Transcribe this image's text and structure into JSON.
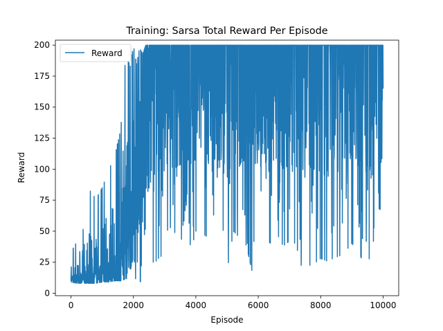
{
  "chart_data": {
    "type": "line",
    "title": "Training: Sarsa Total Reward Per Episode",
    "xlabel": "Episode",
    "ylabel": "Reward",
    "xlim": [
      -500,
      10500
    ],
    "ylim": [
      -2,
      204
    ],
    "xticks": [
      0,
      2000,
      4000,
      6000,
      8000,
      10000
    ],
    "yticks": [
      0,
      25,
      50,
      75,
      100,
      125,
      150,
      175,
      200
    ],
    "grid": false,
    "legend": {
      "placement": "top-left",
      "entries": [
        "Reward"
      ]
    },
    "colors": {
      "series": "#1f77b4",
      "axes": "#000000"
    },
    "series": [
      {
        "name": "Reward",
        "x": [
          0,
          200,
          400,
          600,
          800,
          1000,
          1200,
          1400,
          1600,
          1700,
          1800,
          1900,
          2000,
          2100,
          2200,
          2300,
          2400,
          2600,
          2800,
          3000,
          3200,
          3400,
          3600,
          3800,
          4000,
          4200,
          4400,
          4600,
          4800,
          5000,
          5200,
          5400,
          5600,
          5800,
          6000,
          6200,
          6400,
          6600,
          6800,
          7000,
          7200,
          7400,
          7600,
          7800,
          8000,
          8200,
          8400,
          8600,
          8800,
          9000,
          9200,
          9400,
          9600,
          9800,
          10000
        ],
        "high": [
          33,
          42,
          52,
          83,
          76,
          85,
          99,
          110,
          133,
          181,
          190,
          183,
          200,
          185,
          198,
          193,
          200,
          200,
          200,
          200,
          200,
          200,
          200,
          200,
          200,
          200,
          200,
          200,
          200,
          200,
          200,
          200,
          200,
          200,
          200,
          200,
          200,
          200,
          200,
          200,
          200,
          200,
          200,
          200,
          200,
          200,
          200,
          200,
          200,
          200,
          200,
          200,
          200,
          200,
          200
        ],
        "low": [
          9,
          8,
          8,
          8,
          8,
          9,
          9,
          10,
          10,
          11,
          12,
          11,
          12,
          10,
          9,
          10,
          18,
          22,
          28,
          32,
          35,
          40,
          45,
          30,
          50,
          48,
          45,
          42,
          38,
          14,
          50,
          45,
          40,
          18,
          60,
          45,
          40,
          48,
          38,
          42,
          40,
          20,
          22,
          24,
          28,
          26,
          28,
          30,
          34,
          40,
          35,
          22,
          20,
          48,
          85
        ],
        "center": [
          14,
          16,
          18,
          20,
          22,
          24,
          26,
          30,
          38,
          55,
          70,
          90,
          112,
          130,
          145,
          155,
          162,
          165,
          167,
          168,
          170,
          172,
          170,
          168,
          170,
          172,
          170,
          168,
          170,
          168,
          172,
          170,
          168,
          170,
          172,
          170,
          168,
          170,
          172,
          170,
          168,
          170,
          172,
          170,
          168,
          170,
          172,
          170,
          168,
          170,
          172,
          170,
          168,
          170,
          172
        ]
      }
    ]
  }
}
